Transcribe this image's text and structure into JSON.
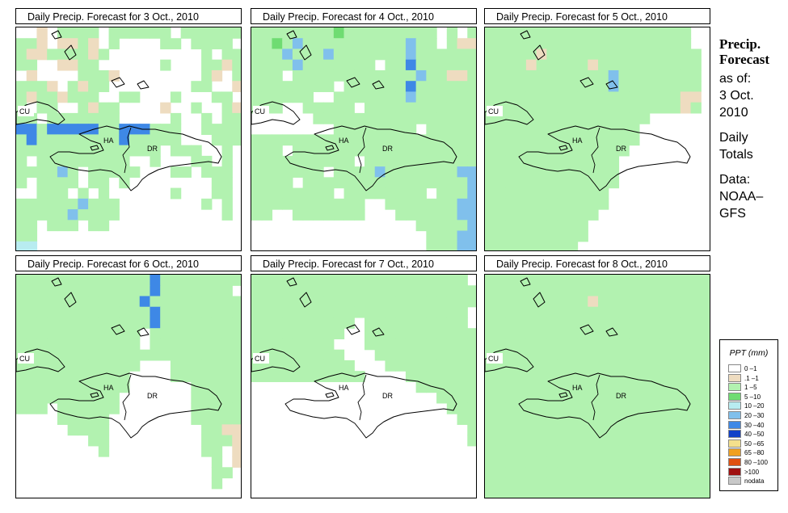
{
  "panels": [
    {
      "title": "Daily Precip. Forecast for  3 Oct., 2010"
    },
    {
      "title": "Daily Precip. Forecast for  4 Oct., 2010"
    },
    {
      "title": "Daily Precip. Forecast for  5 Oct., 2010"
    },
    {
      "title": "Daily Precip. Forecast for  6 Oct., 2010"
    },
    {
      "title": "Daily Precip. Forecast for  7 Oct., 2010"
    },
    {
      "title": "Daily Precip. Forecast for  8 Oct., 2010"
    }
  ],
  "map_labels": {
    "cuba": "CU",
    "haiti": "HA",
    "dominican_republic": "DR"
  },
  "sidebar": {
    "title_line1": "Precip.",
    "title_line2": "Forecast",
    "asof": "as of:",
    "date_line1": "3 Oct.",
    "date_line2": "2010",
    "totals_line1": "Daily",
    "totals_line2": "Totals",
    "data_line1": "Data:",
    "data_line2": "NOAA–",
    "data_line3": "GFS"
  },
  "legend": {
    "title": "PPT (mm)",
    "items": [
      {
        "label": "0 –1",
        "color": "#ffffff"
      },
      {
        "label": ".1 –1",
        "color": "#eedcc0"
      },
      {
        "label": "1 –5",
        "color": "#b2f2b0"
      },
      {
        "label": "5 –10",
        "color": "#6fdc72"
      },
      {
        "label": "10 –20",
        "color": "#b8ecf0"
      },
      {
        "label": "20 –30",
        "color": "#80c0ec"
      },
      {
        "label": "30 –40",
        "color": "#3e88e6"
      },
      {
        "label": "40 –50",
        "color": "#1040c8"
      },
      {
        "label": "50 –65",
        "color": "#f4e08c"
      },
      {
        "label": "65 –80",
        "color": "#f0a020"
      },
      {
        "label": "80 –100",
        "color": "#e05010"
      },
      {
        "label": ">100",
        "color": "#a01010"
      },
      {
        "label": "nodata",
        "color": "#c8c8c8"
      }
    ]
  },
  "precip_grids": [
    "aabaccccaccccccacccccc/ccbabbcbacaaaaccacccc/cbbccccbcaaaaaaaaacacc/ccaabbccaaaaaacaaaccbc/abaaaacccbaaaaaaaacbac/cccbacbccaaaaaaaaccaab/cbccbcccaaccaaacaaacca/caccaacbccaaaabaacaacb/ccacccccccaaaaacaacacc/ggcgggggccgggcccaacccc/cgccccccccgcccccaaaccc/ccccccccccccccacccaaca/cacccccccccaacaaaccaca/ccccfcacccccaaaccaccca/caccccaccacaaaaaaaacca/aacccacacaaaaaacaaacca/ccccccfcccaaaaaaaacaca/cccccfccccaaaaaaaaaaca/ccacccaccaaaaaaaaaaaaa/ccaaaaaaaaaaaaaaaaaaaa/eeaaaaaaaaaaaaaaaaaaaa",
    "ccccccccdcccccccccacac/ccdcfccccccccccfccacbb/cccfcccfcccccccfcccccc/ccccfcccccccaccgcccccc/cccaccccccccccccfccbbc/ccccccccaccccccgcccccc/ccccccaacccccccfcccccc/cccaacccccaccccccccccc/aaaaaacccccccccccccccc/aaaaaaaaccccccccaccccc/cccccccccccccccccccccc/cccacccccccccccccccccc/ccccccccccaccccccccccc/cccccccaccccfcccccccff/ccccaccccccccccccccccf/ccccccccaccccccccacccf/cccccccccccaacccccccff/ccaacccccccaaaccccccff/aaaaaaaaaaaaaaaacccccf/aaaaaaaaaaaaaaaaacccff/aaaaaaaaaaaaaaaaacccff",
    "ccccccccccccccccccccaa/ccccccccccccccccccccaa/cccccbccccccccccccccca/ccccbcccccbcccccccccca/ccccccccccccfcccccccca/ccccccccccccfcccccccca/cccccccccccccccccccbba/cccccccccccccccccccbca/ccccccccccccccccaaaaaa/cccccccccccccccaaaaaaa/cccccccccccccccaaaaaaa/ccccccccccccccaaaaaaaa/cccccccccccccaaaaaaaaa/cccccccccccccaaaaaaaaa/cccccccccccccaaaaaaaaa/ccccccccccccaaaaaaaaaa/ccccccccccccaaaaaaaaaa/cccccccccccaaaaaaaaaaa/ccccccccccaaaaaaaaaaaa/ccccccccccaaaaaaaaaaaa/cccccccccaaaaaaaaaaaaa",
    "cccccccccccccgcccccccc/cccccccccccccgccccccca/ccccccccccccgccccccccc/cccccccccccccgcccccccc/cccccccccccccgcccccccc/ccccccccccccaccccccccc/ccccccccccccaccccccccc/cccccccccccccccccccccc/ccccccccccccaaaccccccc/cccccccccccaaaaccccccc/cccccccccccaaaaaaccccc/ccccccccccaaaaaaaccccc/cccaccccccaaaaaaaccccc/aaaacccccaaaaaaaaccccc/aaaaaccccaaaaaaaaaccbb/aaaaaaaccaaaaaaaaacccb/aaaaaaaacaaaaaaaaaccab/aaaaaaaaaaaaaaaaaaacab/aaaaaaaaaaaaaaaaaaacca/aaaaaaaaaaaaaaaaaaacaa/aaaaaaaaaaaaaaaaaaaaaa",
    "ccccccccccccccccccccca/cccccccccccccccccccccc/cccccccccccccccccccccc/ccccccccccccccccccccca/ccccccccccacccccccccca/cccccccccaaccccccccccc/ccccccccaaaccccccccccc/cccccccccaaacccccccccc/ccccccccccaaaccccccccc/cccccccccccaaaaccccccc/aaaaaaaaaaaaaaaacccccc/aaaaaaaaaaaaaaaaaacccc/aaaaaaaaaaaaaaaaaaaccc/aaaaaaaaaaaaaaaaaaaacc/aaaaaaaaaaaaaaaaaaaaac/aaaaaaaaaaaaaaaaaaaaac/aaaaaaaaaaaaaaaaaaaaaa/aaaaaaaaaaaaaaaaaaaaaa/aaaaaaaaaaaaaaaaaaaaaa/aaaaaaaaaaaaaaaaaaaaaa/aaaaaaaaaaaaaaaaaaaaaa",
    "cccccccccccccccccccccc/cccccccccccccccccccccc/ccccccccccbccccccccccc/cccccccccccccccccccccc/cccccccccccccccccccccc/cccccccccccccccccccccc/cccccccccccccccccccccc/cccccccccccccccccccccc/cccccccccccccccccccccc/cccccccccccccccccccccc/cccccccccccccccccccccc/cccccccccccccccccccccc/cccccccccccccccccccccc/cccccccccccccccccccccc/cccccccccccccccccccccc/cccccccccccccccccccccc/cccccccccccccccccccccc/cccccccccccccccccccccc/cccccccccccccccccccccc/cccccccccccccccccccccc/cccccccccccccccccccccc"
  ]
}
